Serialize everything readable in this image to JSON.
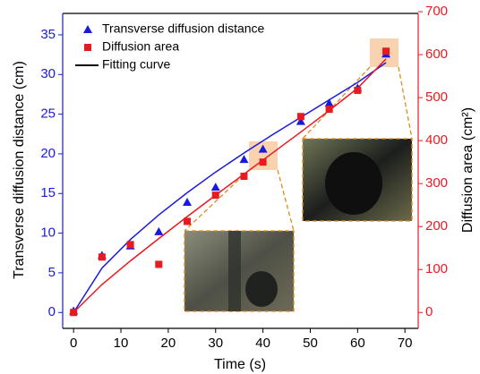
{
  "chart_data": {
    "type": "scatter",
    "xlabel": "Time (s)",
    "ylabel": "Transverse diffusion distance (cm)",
    "y2label": "Diffusion area (cm²)",
    "xlim": [
      -2.3,
      72.8
    ],
    "xticks": [
      0,
      10,
      20,
      30,
      40,
      50,
      60,
      70
    ],
    "ylim": [
      -2,
      37.7
    ],
    "yticks": [
      0,
      5,
      10,
      15,
      20,
      25,
      30,
      35
    ],
    "ycolor": "#1a1adc",
    "y2lim": [
      -37,
      696
    ],
    "y2ticks": [
      0,
      100,
      200,
      300,
      400,
      500,
      600,
      700
    ],
    "y2color": "#e8191f",
    "legend": "top-left",
    "x": [
      0,
      6,
      12,
      18,
      24,
      30,
      36,
      40,
      48,
      54,
      60,
      66
    ],
    "series": [
      {
        "name": "Transverse diffusion distance",
        "color": "#1a1adc",
        "marker": "triangle",
        "values": [
          0.2,
          7.2,
          8.4,
          10.2,
          13.9,
          15.8,
          19.3,
          20.6,
          24.1,
          26.4,
          28.3,
          32.6
        ]
      },
      {
        "name": "Diffusion area",
        "color": "#e8191f",
        "marker": "square",
        "axis": "y2",
        "values": [
          0,
          129,
          158,
          112,
          212,
          273,
          317,
          350,
          456,
          473,
          517,
          608
        ]
      }
    ],
    "fit": {
      "name": "Fitting curve",
      "color": "#000000",
      "x": [
        0,
        6,
        12,
        18,
        24,
        30,
        36,
        42,
        48,
        54,
        60,
        66
      ],
      "series": [
        {
          "color": "#1a1adc",
          "values": [
            0,
            5.6,
            9.2,
            12.3,
            15.1,
            17.7,
            20.1,
            22.4,
            24.6,
            26.8,
            29.0,
            31.5
          ]
        },
        {
          "color": "#e8191f",
          "axis": "y2",
          "values": [
            0,
            65,
            120,
            172,
            223,
            273,
            322,
            371,
            420,
            470,
            522,
            590
          ]
        }
      ]
    }
  }
}
